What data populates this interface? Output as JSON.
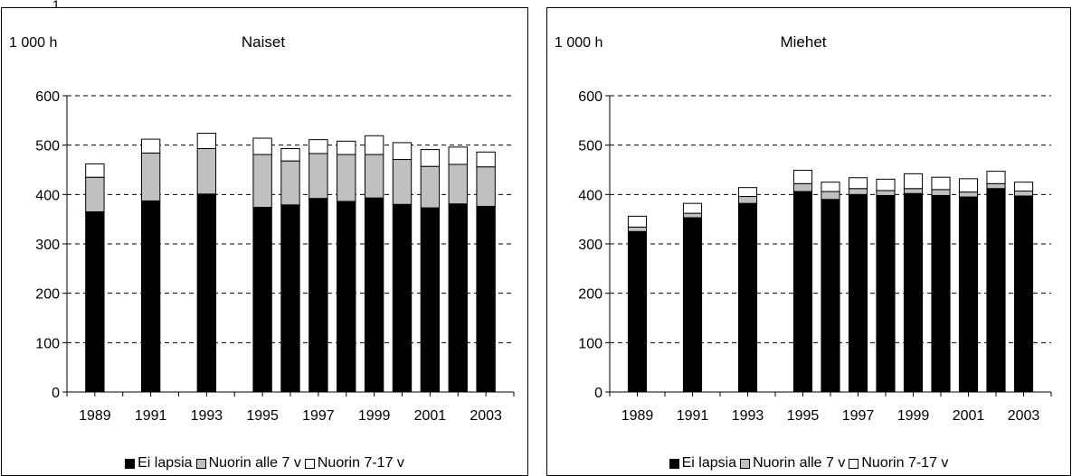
{
  "stray_mark": "1",
  "colors": {
    "ei_lapsia": "#000000",
    "nuorin_alle_7": "#c0c0c0",
    "nuorin_7_17": "#ffffff"
  },
  "chart_data": [
    {
      "type": "bar",
      "stacked": true,
      "title": "Naiset",
      "ylabel": "1 000 h",
      "ylim": [
        0,
        600
      ],
      "yticks": [
        0,
        100,
        200,
        300,
        400,
        500,
        600
      ],
      "xlim": [
        1988,
        2004
      ],
      "xtick_labels": [
        "1989",
        "1991",
        "1993",
        "1995",
        "1997",
        "1999",
        "2001",
        "2003"
      ],
      "grid": "horizontal-dashed",
      "legend_position": "bottom",
      "x": [
        1989,
        1991,
        1993,
        1995,
        1996,
        1997,
        1998,
        1999,
        2000,
        2001,
        2002,
        2003
      ],
      "series": [
        {
          "name": "Ei lapsia",
          "values": [
            365,
            387,
            401,
            374,
            379,
            392,
            386,
            393,
            380,
            373,
            381,
            376
          ]
        },
        {
          "name": "Nuorin alle 7 v",
          "values": [
            70,
            97,
            92,
            107,
            89,
            91,
            95,
            88,
            91,
            84,
            80,
            80
          ]
        },
        {
          "name": "Nuorin 7-17 v",
          "values": [
            27,
            28,
            31,
            33,
            25,
            28,
            27,
            38,
            34,
            34,
            35,
            30
          ]
        }
      ]
    },
    {
      "type": "bar",
      "stacked": true,
      "title": "Miehet",
      "ylabel": "1 000 h",
      "ylim": [
        0,
        600
      ],
      "yticks": [
        0,
        100,
        200,
        300,
        400,
        500,
        600
      ],
      "xlim": [
        1988,
        2004
      ],
      "xtick_labels": [
        "1989",
        "1991",
        "1993",
        "1995",
        "1997",
        "1999",
        "2001",
        "2003"
      ],
      "grid": "horizontal-dashed",
      "legend_position": "bottom",
      "x": [
        1989,
        1991,
        1993,
        1995,
        1996,
        1997,
        1998,
        1999,
        2000,
        2001,
        2002,
        2003
      ],
      "series": [
        {
          "name": "Ei lapsia",
          "values": [
            325,
            353,
            382,
            406,
            390,
            400,
            398,
            402,
            398,
            395,
            412,
            397
          ]
        },
        {
          "name": "Nuorin alle 7 v",
          "values": [
            9,
            9,
            14,
            16,
            16,
            12,
            10,
            10,
            12,
            10,
            10,
            10
          ]
        },
        {
          "name": "Nuorin 7-17 v",
          "values": [
            22,
            20,
            18,
            27,
            19,
            22,
            23,
            30,
            25,
            27,
            25,
            18
          ]
        }
      ]
    }
  ]
}
